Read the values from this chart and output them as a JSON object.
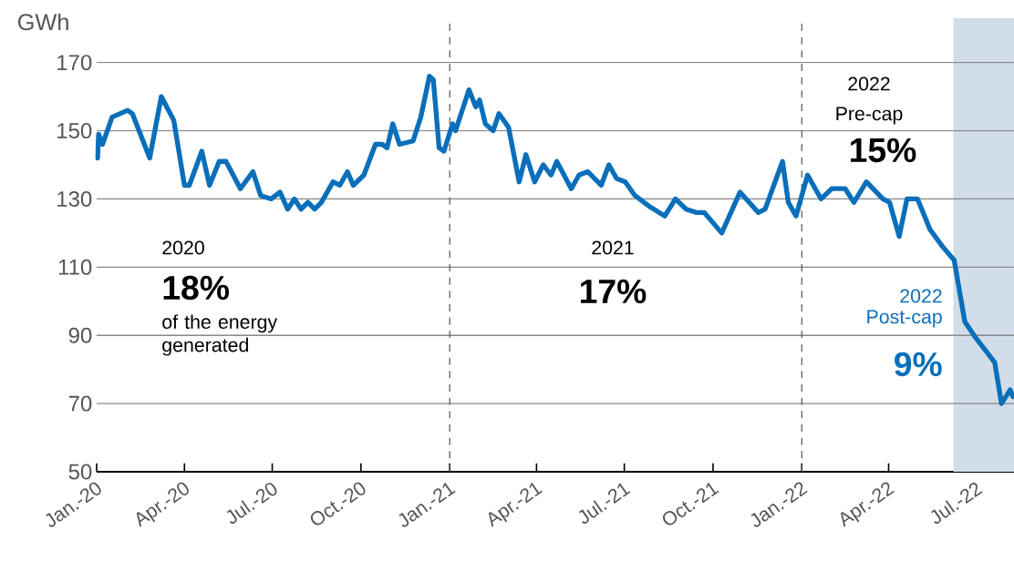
{
  "chart_data": {
    "type": "line",
    "ylabel": "GWh",
    "x": [
      "2020-01-02",
      "2020-01-03",
      "2020-01-07",
      "2020-01-17",
      "2020-02-02",
      "2020-02-07",
      "2020-02-25",
      "2020-03-08",
      "2020-03-21",
      "2020-04-01",
      "2020-04-06",
      "2020-04-19",
      "2020-04-27",
      "2020-05-07",
      "2020-05-14",
      "2020-05-29",
      "2020-06-11",
      "2020-06-19",
      "2020-06-30",
      "2020-07-09",
      "2020-07-17",
      "2020-07-24",
      "2020-07-31",
      "2020-08-07",
      "2020-08-14",
      "2020-08-21",
      "2020-09-02",
      "2020-09-09",
      "2020-09-17",
      "2020-09-23",
      "2020-10-04",
      "2020-10-16",
      "2020-10-23",
      "2020-10-28",
      "2020-11-03",
      "2020-11-10",
      "2020-11-24",
      "2020-12-02",
      "2020-12-11",
      "2020-12-15",
      "2020-12-21",
      "2020-12-26",
      "2021-01-04",
      "2021-01-07",
      "2021-01-21",
      "2021-01-28",
      "2021-02-01",
      "2021-02-07",
      "2021-02-15",
      "2021-02-21",
      "2021-03-03",
      "2021-03-14",
      "2021-03-21",
      "2021-03-30",
      "2021-04-08",
      "2021-04-16",
      "2021-04-22",
      "2021-05-07",
      "2021-05-15",
      "2021-05-24",
      "2021-06-07",
      "2021-06-15",
      "2021-06-23",
      "2021-07-02",
      "2021-07-12",
      "2021-07-26",
      "2021-08-12",
      "2021-08-23",
      "2021-09-03",
      "2021-09-14",
      "2021-09-22",
      "2021-10-01",
      "2021-10-10",
      "2021-10-29",
      "2021-11-17",
      "2021-11-24",
      "2021-12-12",
      "2021-12-18",
      "2021-12-26",
      "2022-01-07",
      "2022-01-21",
      "2022-02-01",
      "2022-02-15",
      "2022-02-24",
      "2022-03-09",
      "2022-03-26",
      "2022-04-02",
      "2022-04-12",
      "2022-04-20",
      "2022-05-01",
      "2022-05-14",
      "2022-05-27",
      "2022-06-08",
      "2022-06-19",
      "2022-07-01",
      "2022-07-12",
      "2022-07-20",
      "2022-07-27",
      "2022-08-05",
      "2022-08-08"
    ],
    "series": [
      {
        "color": "#0a6fba",
        "values": [
          142,
          149,
          146,
          154,
          156,
          155,
          142,
          160,
          153,
          134,
          134,
          144,
          134,
          141,
          141,
          133,
          138,
          131,
          130,
          132,
          127,
          130,
          127,
          129,
          127,
          129,
          135,
          134,
          138,
          134,
          137,
          146,
          146,
          145,
          152,
          146,
          147,
          154,
          166,
          165,
          145,
          144,
          152,
          150,
          162,
          157,
          159,
          152,
          150,
          155,
          151,
          135,
          143,
          135,
          140,
          137,
          141,
          133,
          137,
          138,
          134,
          140,
          136,
          135,
          131,
          128,
          125,
          130,
          127,
          126,
          126,
          123,
          120,
          132,
          126,
          127,
          141,
          129,
          125,
          137,
          130,
          133,
          133,
          129,
          135,
          130,
          129,
          119,
          130,
          130,
          121,
          116,
          112,
          94,
          89,
          85,
          82,
          70,
          74,
          72
        ]
      }
    ],
    "xlim": [
      "2020-01-01",
      "2022-08-09"
    ],
    "xticks": [
      {
        "value": "2020-01-01",
        "label": "Jan.-20"
      },
      {
        "value": "2020-04-01",
        "label": "Apr.-20"
      },
      {
        "value": "2020-07-01",
        "label": "Jul.-20"
      },
      {
        "value": "2020-10-01",
        "label": "Oct.-20"
      },
      {
        "value": "2021-01-01",
        "label": "Jan.-21"
      },
      {
        "value": "2021-04-01",
        "label": "Apr.-21"
      },
      {
        "value": "2021-07-01",
        "label": "Jul.-21"
      },
      {
        "value": "2021-10-01",
        "label": "Oct.-21"
      },
      {
        "value": "2022-01-01",
        "label": "Jan.-22"
      },
      {
        "value": "2022-04-01",
        "label": "Apr.-22"
      },
      {
        "value": "2022-07-01",
        "label": "Jul.-22"
      }
    ],
    "ylim": [
      50,
      183
    ],
    "yticks": [
      50,
      70,
      90,
      110,
      130,
      150,
      170
    ],
    "grid": "y",
    "ref_lines": [
      {
        "axis": "x",
        "value": "2021-01-01",
        "line_style": "dashed",
        "color": "#555555"
      },
      {
        "axis": "x",
        "value": "2022-01-01",
        "line_style": "dashed",
        "color": "#555555"
      }
    ],
    "bands": [
      {
        "axis": "x",
        "from": "2022-06-07",
        "to": "2022-08-09",
        "color": "#d1dde8"
      }
    ],
    "annotations": [
      "2020",
      "18%",
      "of the energy generated",
      "2021",
      "17%",
      "2022",
      "Pre-cap",
      "15%",
      "2022",
      "Post-cap",
      "9%"
    ]
  }
}
